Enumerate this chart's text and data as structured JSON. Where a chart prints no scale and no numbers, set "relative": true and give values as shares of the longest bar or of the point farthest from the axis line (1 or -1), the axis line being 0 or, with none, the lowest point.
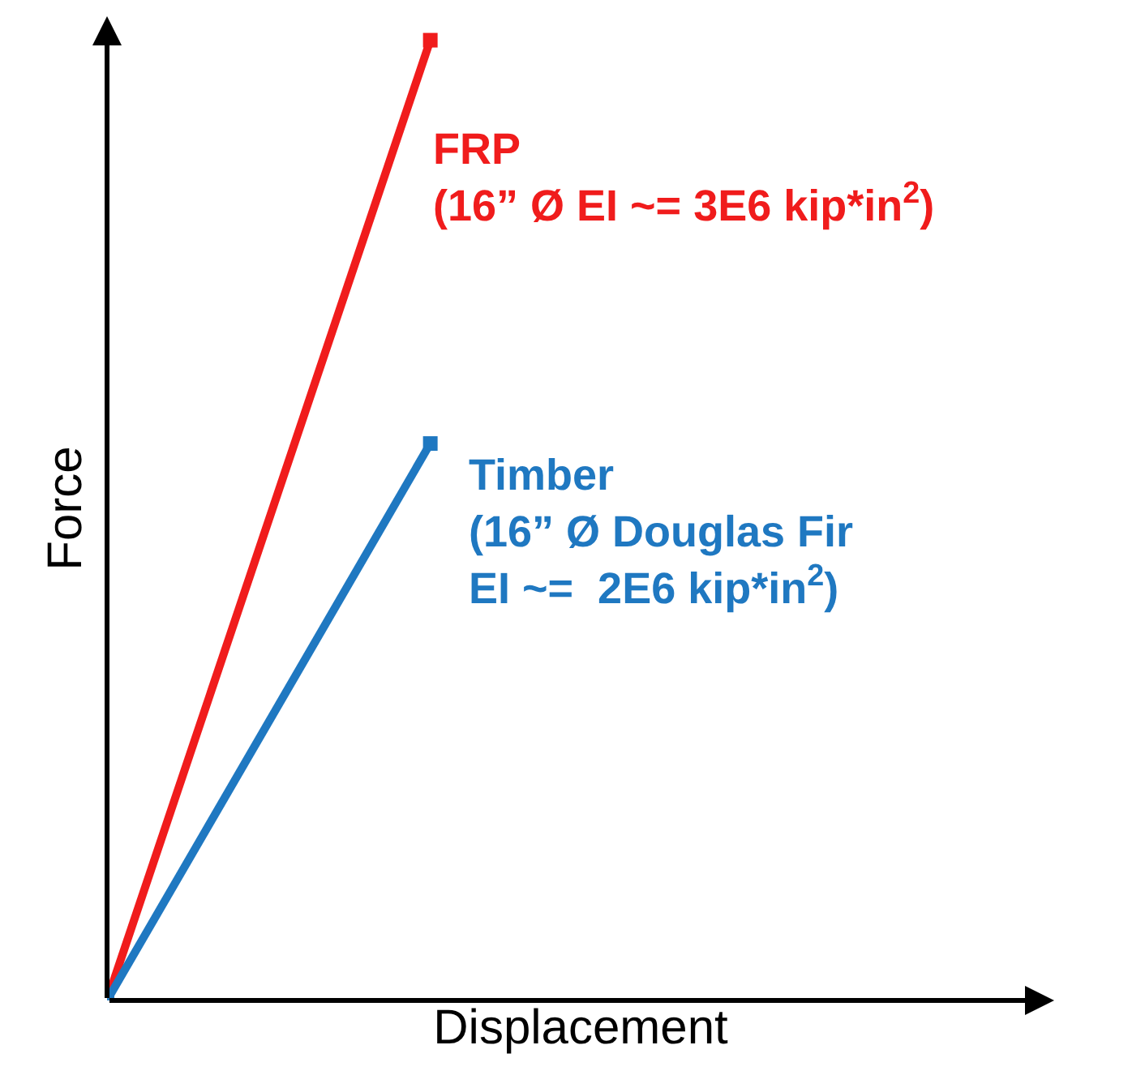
{
  "chart_data": {
    "type": "line",
    "relative": true,
    "xlabel": "Displacement",
    "ylabel": "Force",
    "categories": [
      null,
      null
    ],
    "marker": "square",
    "line_style": "solid",
    "series": [
      {
        "name": "FRP\n(16” Ø EI ~= 3E6 kip*in$^{2}$)",
        "color": "#f01c1c",
        "values": [
          0,
          1
        ]
      },
      {
        "name": "Timber\n(16” Ø Douglas Fir\nEI ~=  2E6 kip*in$^{2}$)",
        "color": "#1f78c1",
        "values": [
          0,
          0.58
        ]
      }
    ]
  }
}
